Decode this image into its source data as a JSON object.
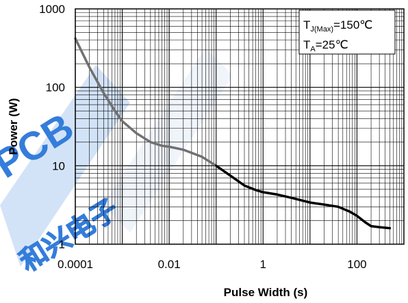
{
  "chart_data": {
    "type": "line",
    "title": "",
    "xlabel": "Pulse Width (s)",
    "ylabel": "Power (W)",
    "x_scale": "log",
    "y_scale": "log",
    "xlim": [
      0.0001,
      1000
    ],
    "ylim": [
      1,
      1000
    ],
    "x_ticks": [
      "0.0001",
      "0.01",
      "1",
      "100"
    ],
    "y_ticks": [
      "1",
      "10",
      "100",
      "1000"
    ],
    "grid": true,
    "legend_placement": "top-right",
    "annotation": {
      "line1_prefix": "T",
      "line1_sub": "J(Max)",
      "line1_value": "=150℃",
      "line2_prefix": "T",
      "line2_sub": "A",
      "line2_value": "=25℃"
    },
    "watermark": "PCB 和兴电子",
    "colors": {
      "curve_start": "#707070",
      "curve_end": "#000000",
      "grid": "#000000"
    },
    "series": [
      {
        "values": [
          [
            0.0001,
            420
          ],
          [
            0.0002,
            180
          ],
          [
            0.0004,
            85
          ],
          [
            0.0007,
            50
          ],
          [
            0.001,
            37
          ],
          [
            0.002,
            26
          ],
          [
            0.004,
            20
          ],
          [
            0.007,
            18
          ],
          [
            0.01,
            17.5
          ],
          [
            0.02,
            16
          ],
          [
            0.05,
            13
          ],
          [
            0.1,
            10
          ],
          [
            0.2,
            7.5
          ],
          [
            0.4,
            5.6
          ],
          [
            0.7,
            4.9
          ],
          [
            1,
            4.6
          ],
          [
            2,
            4.3
          ],
          [
            4,
            3.9
          ],
          [
            10,
            3.4
          ],
          [
            20,
            3.2
          ],
          [
            40,
            3.0
          ],
          [
            70,
            2.6
          ],
          [
            100,
            2.3
          ],
          [
            150,
            1.9
          ],
          [
            200,
            1.7
          ],
          [
            300,
            1.65
          ],
          [
            500,
            1.6
          ]
        ]
      }
    ]
  }
}
